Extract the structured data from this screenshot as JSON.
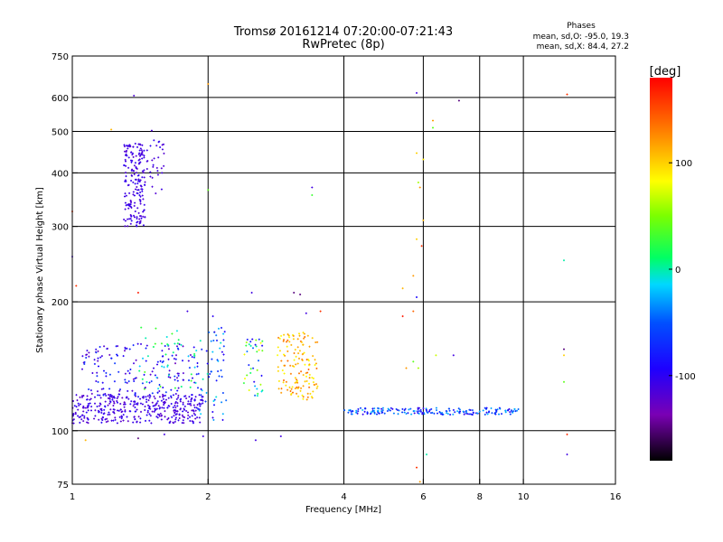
{
  "chart_data": {
    "type": "scatter",
    "title": "Tromsø 20161214 07:20:00-07:21:43",
    "subtitle": "RwPretec (8p)",
    "xlabel": "Frequency [MHz]",
    "ylabel": "Stationary phase Virtual Height [km]",
    "x_scale": "log",
    "y_scale": "log",
    "xlim": [
      1,
      16
    ],
    "ylim": [
      75,
      750
    ],
    "x_ticks": [
      {
        "value": 1,
        "label": "1"
      },
      {
        "value": 2,
        "label": "2"
      },
      {
        "value": 4,
        "label": "4"
      },
      {
        "value": 6,
        "label": "6"
      },
      {
        "value": 8,
        "label": "8"
      },
      {
        "value": 10,
        "label": "10"
      },
      {
        "value": 16,
        "label": "16"
      }
    ],
    "y_ticks": [
      {
        "value": 75,
        "label": "75"
      },
      {
        "value": 100,
        "label": "100"
      },
      {
        "value": 200,
        "label": "200"
      },
      {
        "value": 300,
        "label": "300"
      },
      {
        "value": 400,
        "label": "400"
      },
      {
        "value": 500,
        "label": "500"
      },
      {
        "value": 600,
        "label": "600"
      },
      {
        "value": 750,
        "label": "750"
      }
    ],
    "x_gridlines": [
      2,
      4,
      6,
      8,
      10
    ],
    "y_gridlines": [
      100,
      200,
      300,
      400,
      500,
      600
    ],
    "grid": true,
    "stats": {
      "heading": "Phases",
      "line1": "mean, sd,O: -95.0, 19.3",
      "line2": "mean, sd,X:  84.4, 27.2"
    },
    "colorbar": {
      "label": "[deg]",
      "range": [
        -180,
        180
      ],
      "ticks": [
        {
          "value": 100,
          "label": "100"
        },
        {
          "value": 0,
          "label": "0"
        },
        {
          "value": -100,
          "label": "-100"
        }
      ]
    },
    "clusters": [
      {
        "x_range": [
          1.0,
          1.95
        ],
        "h_range": [
          104,
          122
        ],
        "phase_range": [
          -125,
          -95
        ],
        "count": 380
      },
      {
        "x_range": [
          1.05,
          1.9
        ],
        "h_range": [
          120,
          160
        ],
        "phase_range": [
          -130,
          -60
        ],
        "count": 170
      },
      {
        "x_range": [
          1.4,
          1.9
        ],
        "h_range": [
          125,
          175
        ],
        "phase_range": [
          -20,
          40
        ],
        "count": 45
      },
      {
        "x_range": [
          1.9,
          2.2
        ],
        "h_range": [
          105,
          175
        ],
        "phase_range": [
          -110,
          0
        ],
        "count": 60
      },
      {
        "x_range": [
          1.3,
          1.45
        ],
        "h_range": [
          300,
          470
        ],
        "phase_range": [
          -120,
          -100
        ],
        "count": 190
      },
      {
        "x_range": [
          1.45,
          1.6
        ],
        "h_range": [
          350,
          480
        ],
        "phase_range": [
          -120,
          -100
        ],
        "count": 30
      },
      {
        "x_range": [
          2.4,
          2.65
        ],
        "h_range": [
          120,
          165
        ],
        "phase_range": [
          -100,
          90
        ],
        "count": 40
      },
      {
        "x_range": [
          2.85,
          3.5
        ],
        "h_range": [
          118,
          170
        ],
        "phase_range": [
          80,
          140
        ],
        "count": 140
      },
      {
        "x_range": [
          4.0,
          9.8
        ],
        "h_range": [
          109,
          113
        ],
        "phase_range": [
          -110,
          -20
        ],
        "count": 190
      }
    ],
    "points": [
      {
        "x": 1.37,
        "y": 606,
        "phase": -115
      },
      {
        "x": 1.5,
        "y": 502,
        "phase": -115
      },
      {
        "x": 1.22,
        "y": 505,
        "phase": 110
      },
      {
        "x": 2.0,
        "y": 645,
        "phase": 120
      },
      {
        "x": 1.0,
        "y": 325,
        "phase": 160
      },
      {
        "x": 1.0,
        "y": 255,
        "phase": -110
      },
      {
        "x": 1.02,
        "y": 218,
        "phase": 160
      },
      {
        "x": 2.0,
        "y": 365,
        "phase": 40
      },
      {
        "x": 3.4,
        "y": 370,
        "phase": -110
      },
      {
        "x": 3.4,
        "y": 355,
        "phase": 30
      },
      {
        "x": 5.8,
        "y": 615,
        "phase": -110
      },
      {
        "x": 7.2,
        "y": 590,
        "phase": -150
      },
      {
        "x": 6.3,
        "y": 530,
        "phase": 120
      },
      {
        "x": 6.3,
        "y": 510,
        "phase": 40
      },
      {
        "x": 5.8,
        "y": 445,
        "phase": 100
      },
      {
        "x": 6.0,
        "y": 430,
        "phase": 90
      },
      {
        "x": 5.85,
        "y": 380,
        "phase": 60
      },
      {
        "x": 5.9,
        "y": 370,
        "phase": 120
      },
      {
        "x": 6.0,
        "y": 310,
        "phase": 110
      },
      {
        "x": 5.8,
        "y": 280,
        "phase": 100
      },
      {
        "x": 5.95,
        "y": 270,
        "phase": 160
      },
      {
        "x": 5.7,
        "y": 230,
        "phase": 120
      },
      {
        "x": 5.4,
        "y": 215,
        "phase": 110
      },
      {
        "x": 5.8,
        "y": 205,
        "phase": -90
      },
      {
        "x": 5.7,
        "y": 190,
        "phase": 140
      },
      {
        "x": 5.4,
        "y": 185,
        "phase": 170
      },
      {
        "x": 5.7,
        "y": 145,
        "phase": 40
      },
      {
        "x": 5.5,
        "y": 140,
        "phase": 120
      },
      {
        "x": 5.85,
        "y": 140,
        "phase": 60
      },
      {
        "x": 6.4,
        "y": 150,
        "phase": 70
      },
      {
        "x": 7.0,
        "y": 150,
        "phase": -110
      },
      {
        "x": 6.1,
        "y": 88,
        "phase": 0
      },
      {
        "x": 5.8,
        "y": 82,
        "phase": 160
      },
      {
        "x": 5.9,
        "y": 76,
        "phase": 120
      },
      {
        "x": 12.5,
        "y": 610,
        "phase": 160
      },
      {
        "x": 12.3,
        "y": 250,
        "phase": 0
      },
      {
        "x": 12.3,
        "y": 155,
        "phase": -150
      },
      {
        "x": 12.3,
        "y": 150,
        "phase": 100
      },
      {
        "x": 12.3,
        "y": 130,
        "phase": 40
      },
      {
        "x": 12.5,
        "y": 98,
        "phase": 160
      },
      {
        "x": 12.5,
        "y": 88,
        "phase": -110
      },
      {
        "x": 1.58,
        "y": 400,
        "phase": -110
      },
      {
        "x": 1.4,
        "y": 210,
        "phase": 170
      },
      {
        "x": 1.07,
        "y": 95,
        "phase": 110
      },
      {
        "x": 1.4,
        "y": 96,
        "phase": -150
      },
      {
        "x": 1.6,
        "y": 98,
        "phase": -110
      },
      {
        "x": 2.55,
        "y": 95,
        "phase": -110
      },
      {
        "x": 2.9,
        "y": 97,
        "phase": -110
      },
      {
        "x": 1.95,
        "y": 97,
        "phase": -110
      },
      {
        "x": 2.5,
        "y": 210,
        "phase": -110
      },
      {
        "x": 3.1,
        "y": 210,
        "phase": -150
      },
      {
        "x": 3.2,
        "y": 208,
        "phase": -150
      },
      {
        "x": 1.8,
        "y": 190,
        "phase": -110
      },
      {
        "x": 2.05,
        "y": 185,
        "phase": -100
      },
      {
        "x": 3.3,
        "y": 188,
        "phase": -110
      },
      {
        "x": 3.55,
        "y": 190,
        "phase": 160
      }
    ]
  }
}
